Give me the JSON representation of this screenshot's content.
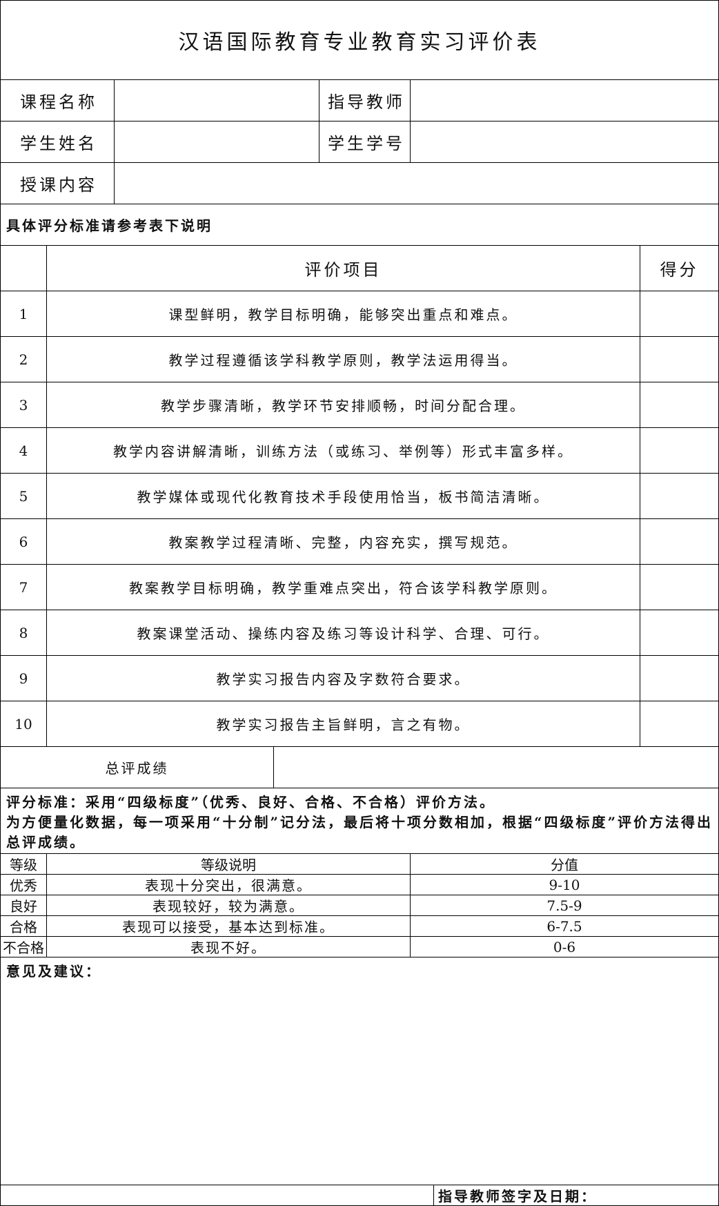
{
  "title": "汉语国际教育专业教育实习评价表",
  "info": {
    "course": "课程名称",
    "teacher": "指导教师",
    "student_name": "学生姓名",
    "student_id": "学生学号",
    "content": "授课内容"
  },
  "note": "具体评分标准请参考表下说明",
  "items_header": {
    "item": "评价项目",
    "score": "得分"
  },
  "items": [
    {
      "no": "1",
      "text": "课型鲜明，教学目标明确，能够突出重点和难点。"
    },
    {
      "no": "2",
      "text": "教学过程遵循该学科教学原则，教学法运用得当。"
    },
    {
      "no": "3",
      "text": "教学步骤清晰，教学环节安排顺畅，时间分配合理。"
    },
    {
      "no": "4",
      "text": "教学内容讲解清晰，训练方法（或练习、举例等）形式丰富多样。"
    },
    {
      "no": "5",
      "text": "教学媒体或现代化教育技术手段使用恰当，板书简洁清晰。"
    },
    {
      "no": "6",
      "text": "教案教学过程清晰、完整，内容充实，撰写规范。"
    },
    {
      "no": "7",
      "text": "教案教学目标明确，教学重难点突出，符合该学科教学原则。"
    },
    {
      "no": "8",
      "text": "教案课堂活动、操练内容及练习等设计科学、合理、可行。"
    },
    {
      "no": "9",
      "text": "教学实习报告内容及字数符合要求。"
    },
    {
      "no": "10",
      "text": "教学实习报告主旨鲜明，言之有物。"
    }
  ],
  "total": "总评成绩",
  "criteria": {
    "line1": "评分标准：采用“四级标度”（优秀、良好、合格、不合格）评价方法。",
    "line2": "为方便量化数据，每一项采用“十分制”记分法，最后将十项分数相加，根据“四级标度”评价方法得出总评成绩。"
  },
  "grades_header": {
    "level": "等级",
    "desc": "等级说明",
    "value": "分值"
  },
  "grades": [
    {
      "level": "优秀",
      "desc": "表现十分突出，很满意。",
      "value": "9-10"
    },
    {
      "level": "良好",
      "desc": "表现较好，较为满意。",
      "value": "7.5-9"
    },
    {
      "level": "合格",
      "desc": "表现可以接受，基本达到标准。",
      "value": "6-7.5"
    },
    {
      "level": "不合格",
      "desc": "表现不好。",
      "value": "0-6"
    }
  ],
  "opinion": "意见及建议：",
  "signature": "指导教师签字及日期："
}
